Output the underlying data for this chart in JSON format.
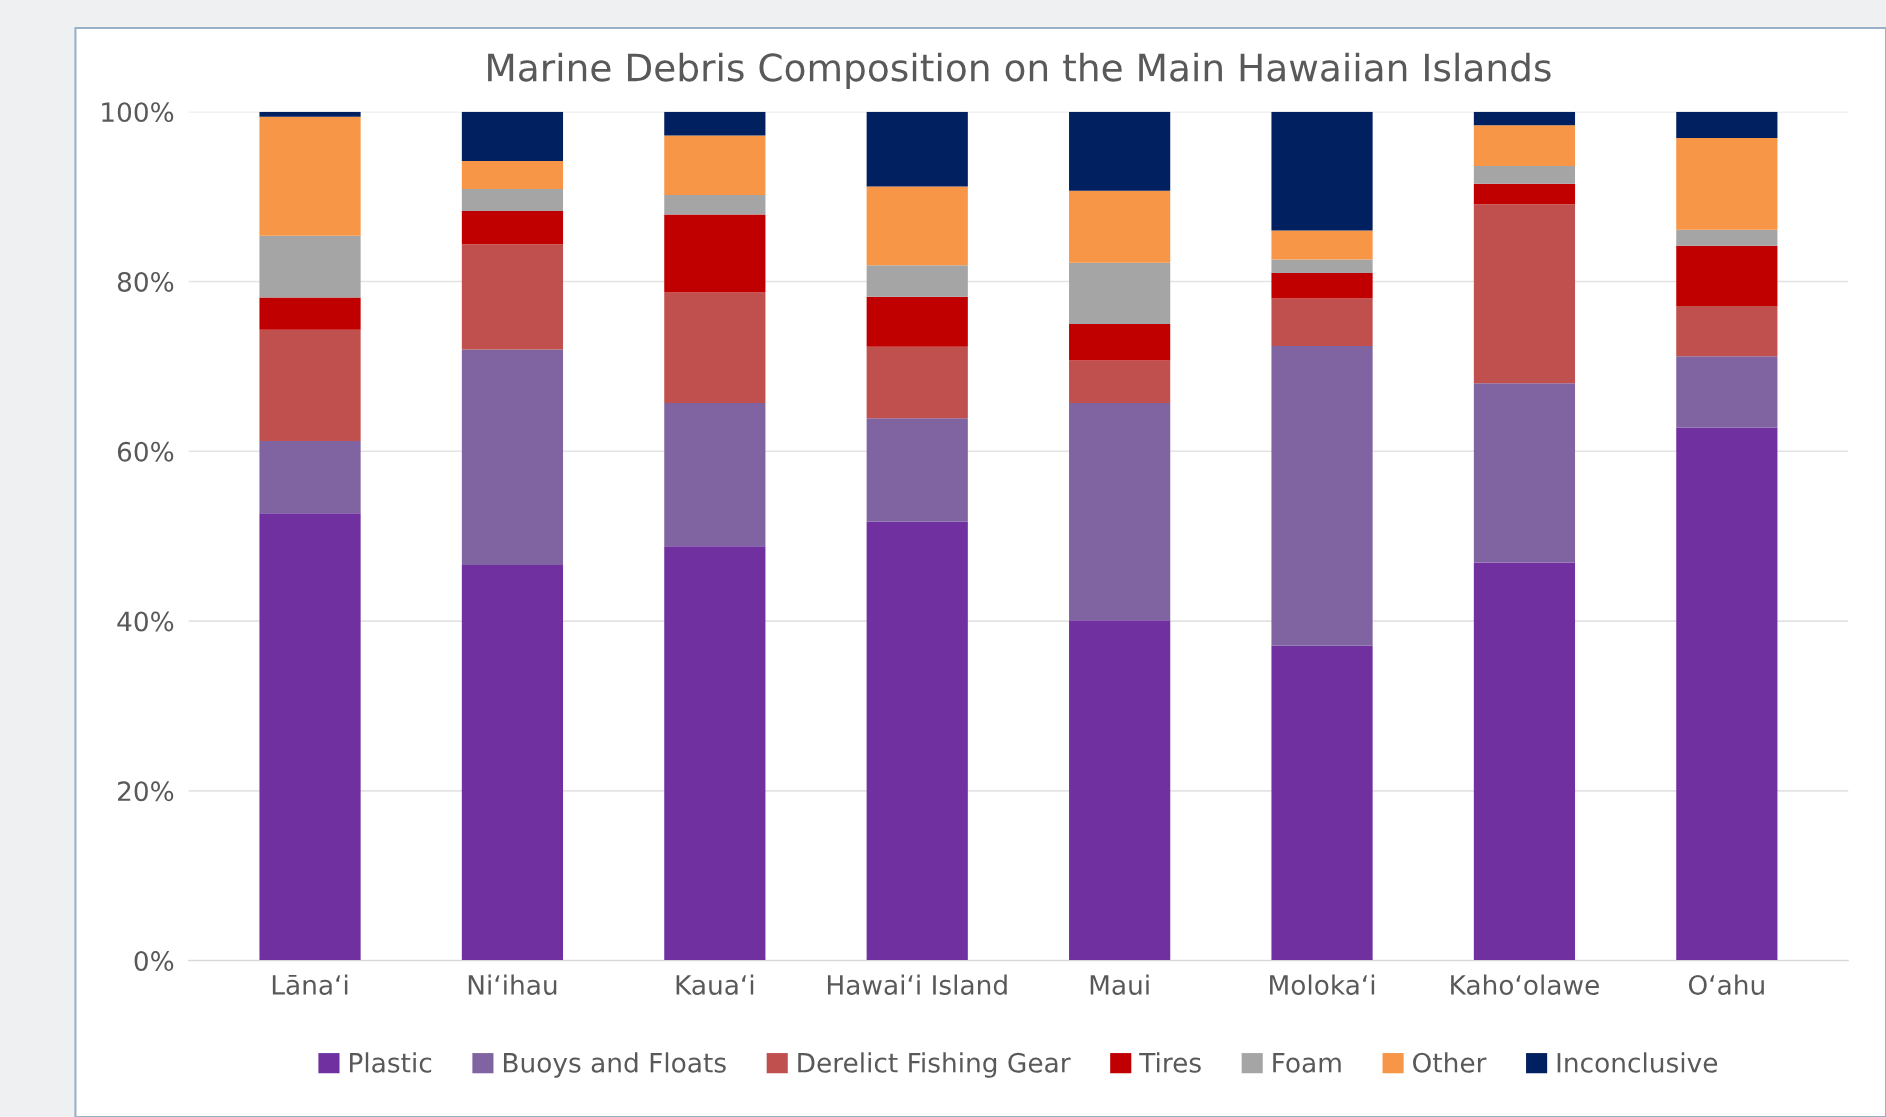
{
  "chart_data": {
    "type": "bar",
    "stacked": true,
    "title": "Marine Debris Composition on the Main Hawaiian Islands",
    "categories": [
      "Lānaʻi",
      "Niʻihau",
      "Kauaʻi",
      "Hawaiʻi Island",
      "Maui",
      "Molokaʻi",
      "Kahoʻolawe",
      "Oʻahu"
    ],
    "series": [
      {
        "name": "Plastic",
        "color": "#7030a0",
        "values": [
          52.7,
          46.6,
          48.8,
          51.7,
          40.1,
          37.1,
          46.9,
          62.8
        ]
      },
      {
        "name": "Buoys and Floats",
        "color": "#8064a2",
        "values": [
          8.5,
          25.4,
          16.9,
          12.2,
          25.6,
          35.3,
          21.1,
          8.4
        ]
      },
      {
        "name": "Derelict Fishing Gear",
        "color": "#c0504d",
        "values": [
          13.1,
          12.4,
          13.0,
          8.4,
          5.0,
          5.6,
          21.1,
          5.9
        ]
      },
      {
        "name": "Tires",
        "color": "#c00000",
        "values": [
          3.8,
          3.9,
          9.2,
          5.9,
          4.3,
          3.0,
          2.4,
          7.1
        ]
      },
      {
        "name": "Foam",
        "color": "#a5a5a5",
        "values": [
          7.3,
          2.6,
          2.3,
          3.7,
          7.2,
          1.6,
          2.1,
          1.9
        ]
      },
      {
        "name": "Other",
        "color": "#f79646",
        "values": [
          14.0,
          3.3,
          7.0,
          9.3,
          8.5,
          3.4,
          4.8,
          10.8
        ]
      },
      {
        "name": "Inconclusive",
        "color": "#002060",
        "values": [
          0.6,
          5.8,
          2.8,
          8.8,
          9.3,
          14.0,
          1.6,
          3.1
        ]
      }
    ],
    "ylim": [
      0,
      100
    ],
    "yticks": [
      {
        "value": 0,
        "label": "0%"
      },
      {
        "value": 20,
        "label": "20%"
      },
      {
        "value": 40,
        "label": "40%"
      },
      {
        "value": 60,
        "label": "60%"
      },
      {
        "value": 80,
        "label": "80%"
      },
      {
        "value": 100,
        "label": "100%"
      }
    ],
    "grid": "y",
    "legend": "bottom"
  }
}
